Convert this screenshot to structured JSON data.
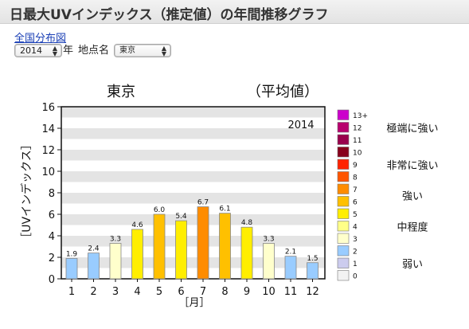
{
  "page": {
    "title": "日最大UVインデックス（推定値）の年間推移グラフ",
    "map_link": "全国分布図",
    "year_select": "2014",
    "year_suffix": "年",
    "location_label": "地点名",
    "location_select": "東京"
  },
  "legend": {
    "levels": [
      "13+",
      "12",
      "11",
      "10",
      "9",
      "8",
      "7",
      "6",
      "5",
      "4",
      "3",
      "2",
      "1",
      "0"
    ],
    "colors": [
      "#cc00cc",
      "#b8006e",
      "#99004c",
      "#88001b",
      "#ff2200",
      "#ff5500",
      "#ff8c00",
      "#ffc000",
      "#ffee00",
      "#ffff88",
      "#ffffcc",
      "#99ccff",
      "#ccccee",
      "#f2f2f2"
    ],
    "categories": [
      {
        "label": "極端に強い",
        "from": 11,
        "to": 13
      },
      {
        "label": "非常に強い",
        "from": 8,
        "to": 10
      },
      {
        "label": "強い",
        "from": 6,
        "to": 7
      },
      {
        "label": "中程度",
        "from": 3,
        "to": 5
      },
      {
        "label": "弱い",
        "from": 0,
        "to": 2
      }
    ]
  },
  "chart_data": {
    "type": "bar",
    "title": "東京",
    "subtitle": "（平均値）",
    "annotation": "2014",
    "xlabel": "［月］",
    "ylabel": "［UVインデックス］",
    "categories": [
      "1",
      "2",
      "3",
      "4",
      "5",
      "6",
      "7",
      "8",
      "9",
      "10",
      "11",
      "12"
    ],
    "values": [
      1.9,
      2.4,
      3.3,
      4.6,
      6.0,
      5.4,
      6.7,
      6.1,
      4.8,
      3.3,
      2.1,
      1.5
    ],
    "value_labels": [
      "1.9",
      "2.4",
      "3.3",
      "4.6",
      "6.0",
      "5.4",
      "6.7",
      "6.1",
      "4.8",
      "3.3",
      "2.1",
      "1.5"
    ],
    "bar_colors": [
      "#99ccff",
      "#99ccff",
      "#ffffcc",
      "#ffee00",
      "#ffc000",
      "#ffee00",
      "#ff8c00",
      "#ffc000",
      "#ffee00",
      "#ffffcc",
      "#99ccff",
      "#99ccff"
    ],
    "ylim": [
      0,
      16
    ],
    "yticks": [
      "0",
      "2",
      "4",
      "6",
      "8",
      "10",
      "12",
      "14",
      "16"
    ],
    "grid": "horizontal-bands",
    "legend_position": "right"
  }
}
